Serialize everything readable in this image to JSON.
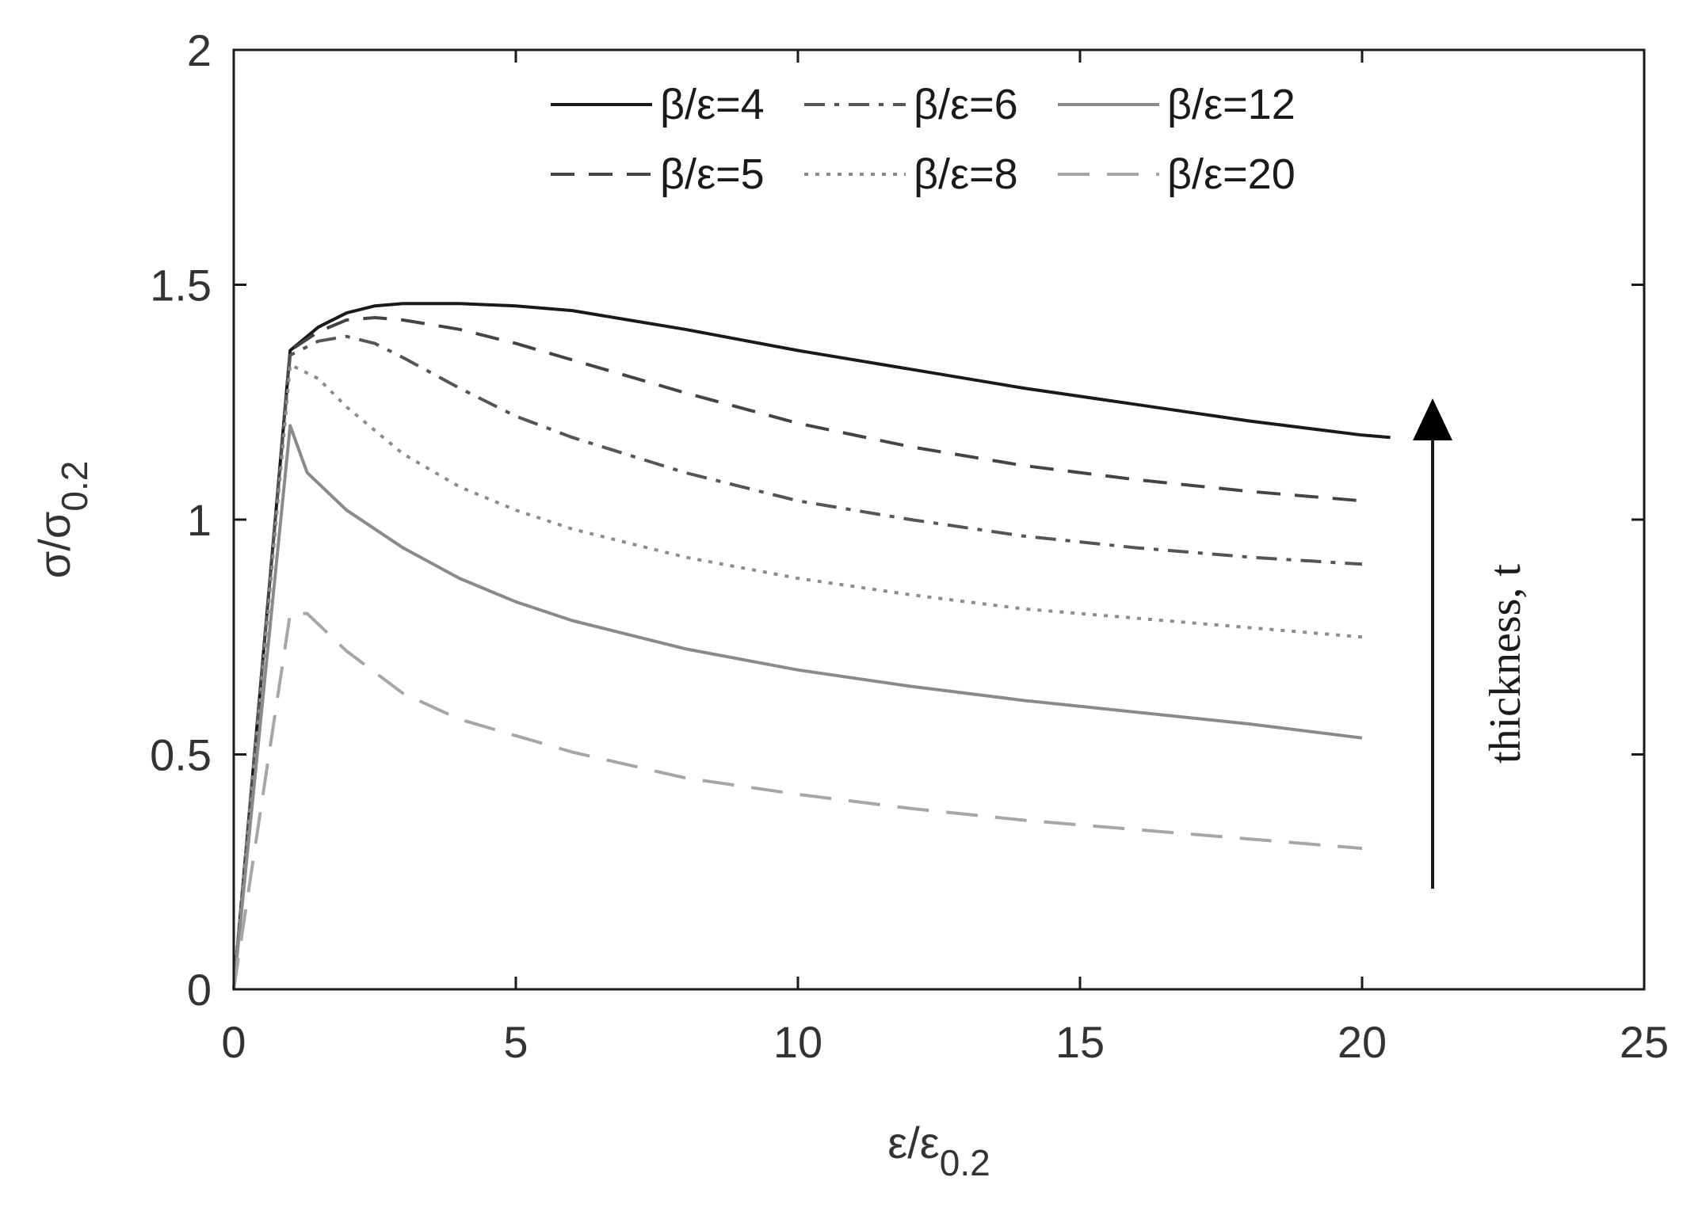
{
  "chart_data": {
    "type": "line",
    "title": "",
    "xlabel": {
      "main": "ε/ε",
      "sub": "0.2"
    },
    "ylabel": {
      "main": "σ/σ",
      "sub": "0.2"
    },
    "xlim": [
      0,
      25
    ],
    "ylim": [
      0,
      2
    ],
    "xticks": [
      "0",
      "5",
      "10",
      "15",
      "20",
      "25"
    ],
    "yticks": [
      "0",
      "0.5",
      "1",
      "1.5",
      "2"
    ],
    "grid": false,
    "legend_position": "top",
    "annotation": {
      "text": "thickness, t",
      "arrow_direction": "up"
    },
    "series": [
      {
        "name": "β/ε=4",
        "color": "#1a1a1a",
        "dash": "solid",
        "points": [
          [
            0,
            0
          ],
          [
            0.5,
            0.68
          ],
          [
            1,
            1.36
          ],
          [
            1.5,
            1.41
          ],
          [
            2,
            1.44
          ],
          [
            2.5,
            1.455
          ],
          [
            3,
            1.46
          ],
          [
            4,
            1.46
          ],
          [
            5,
            1.455
          ],
          [
            6,
            1.445
          ],
          [
            7,
            1.425
          ],
          [
            8,
            1.405
          ],
          [
            10,
            1.36
          ],
          [
            12,
            1.32
          ],
          [
            14,
            1.28
          ],
          [
            16,
            1.245
          ],
          [
            18,
            1.21
          ],
          [
            20,
            1.18
          ],
          [
            20.5,
            1.175
          ]
        ]
      },
      {
        "name": "β/ε=5",
        "color": "#444444",
        "dash": "dashed",
        "points": [
          [
            0,
            0
          ],
          [
            0.5,
            0.68
          ],
          [
            1,
            1.36
          ],
          [
            1.5,
            1.4
          ],
          [
            2,
            1.425
          ],
          [
            2.5,
            1.43
          ],
          [
            3,
            1.425
          ],
          [
            4,
            1.405
          ],
          [
            5,
            1.375
          ],
          [
            6,
            1.34
          ],
          [
            8,
            1.27
          ],
          [
            10,
            1.205
          ],
          [
            12,
            1.155
          ],
          [
            14,
            1.115
          ],
          [
            16,
            1.085
          ],
          [
            18,
            1.06
          ],
          [
            20,
            1.04
          ]
        ]
      },
      {
        "name": "β/ε=6",
        "color": "#555555",
        "dash": "dashdot",
        "points": [
          [
            0,
            0
          ],
          [
            0.5,
            0.68
          ],
          [
            1,
            1.35
          ],
          [
            1.5,
            1.38
          ],
          [
            2,
            1.39
          ],
          [
            2.5,
            1.375
          ],
          [
            3,
            1.345
          ],
          [
            4,
            1.28
          ],
          [
            5,
            1.22
          ],
          [
            6,
            1.175
          ],
          [
            8,
            1.1
          ],
          [
            10,
            1.04
          ],
          [
            12,
            1.0
          ],
          [
            14,
            0.965
          ],
          [
            16,
            0.94
          ],
          [
            18,
            0.92
          ],
          [
            20,
            0.905
          ]
        ]
      },
      {
        "name": "β/ε=8",
        "color": "#8c8c8c",
        "dash": "dotted",
        "points": [
          [
            0,
            0
          ],
          [
            0.5,
            0.66
          ],
          [
            1,
            1.33
          ],
          [
            1.5,
            1.3
          ],
          [
            2,
            1.24
          ],
          [
            3,
            1.14
          ],
          [
            4,
            1.07
          ],
          [
            5,
            1.02
          ],
          [
            6,
            0.98
          ],
          [
            8,
            0.92
          ],
          [
            10,
            0.875
          ],
          [
            12,
            0.84
          ],
          [
            14,
            0.81
          ],
          [
            16,
            0.79
          ],
          [
            18,
            0.77
          ],
          [
            20,
            0.75
          ]
        ]
      },
      {
        "name": "β/ε=12",
        "color": "#8a8a8a",
        "dash": "solid",
        "points": [
          [
            0,
            0
          ],
          [
            0.5,
            0.6
          ],
          [
            1,
            1.2
          ],
          [
            1.3,
            1.1
          ],
          [
            2,
            1.02
          ],
          [
            3,
            0.94
          ],
          [
            4,
            0.875
          ],
          [
            5,
            0.825
          ],
          [
            6,
            0.785
          ],
          [
            8,
            0.725
          ],
          [
            10,
            0.68
          ],
          [
            12,
            0.645
          ],
          [
            14,
            0.615
          ],
          [
            16,
            0.59
          ],
          [
            18,
            0.565
          ],
          [
            20,
            0.535
          ]
        ]
      },
      {
        "name": "β/ε=20",
        "color": "#a6a6a6",
        "dash": "longdash",
        "points": [
          [
            0,
            0
          ],
          [
            0.5,
            0.4
          ],
          [
            1,
            0.8
          ],
          [
            1.3,
            0.8
          ],
          [
            2,
            0.72
          ],
          [
            3,
            0.63
          ],
          [
            4,
            0.575
          ],
          [
            5,
            0.54
          ],
          [
            6,
            0.505
          ],
          [
            8,
            0.45
          ],
          [
            10,
            0.415
          ],
          [
            12,
            0.385
          ],
          [
            14,
            0.36
          ],
          [
            16,
            0.34
          ],
          [
            18,
            0.32
          ],
          [
            20,
            0.3
          ]
        ]
      }
    ]
  }
}
